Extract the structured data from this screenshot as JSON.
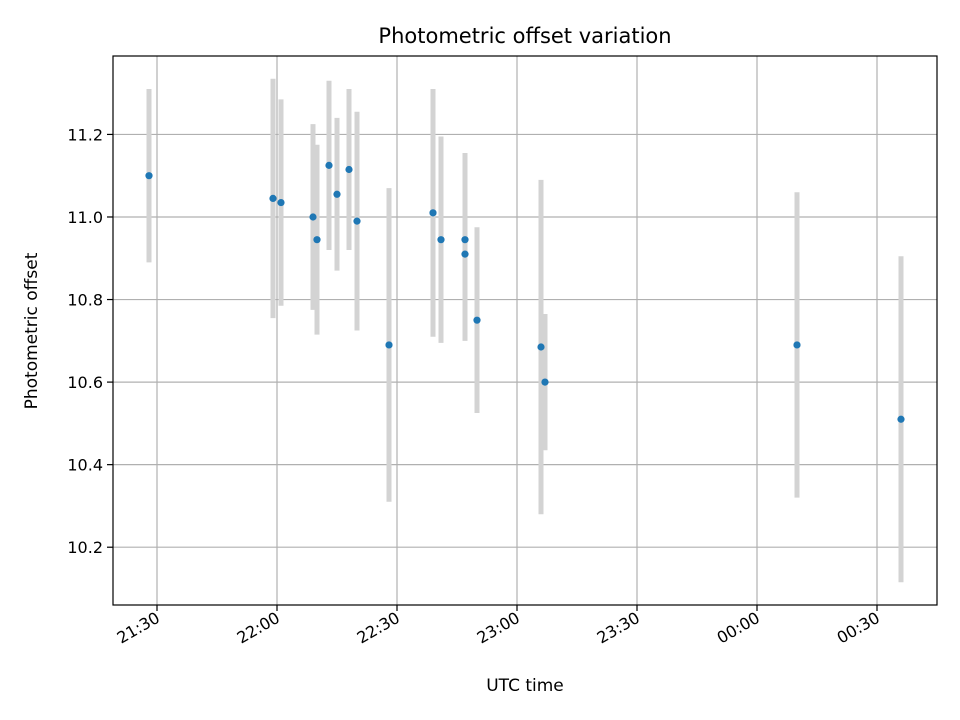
{
  "chart_data": {
    "type": "scatter",
    "title": "Photometric offset variation",
    "xlabel": "UTC time",
    "ylabel": "Photometric offset",
    "xlim": [
      "21:19",
      "00:45"
    ],
    "ylim": [
      10.06,
      11.39
    ],
    "grid": true,
    "x_ticks": [
      "21:30",
      "22:00",
      "22:30",
      "23:00",
      "23:30",
      "00:00",
      "00:30"
    ],
    "y_ticks": [
      "10.2",
      "10.4",
      "10.6",
      "10.8",
      "11.0",
      "11.2"
    ],
    "series": [
      {
        "marker_color": "#1f77b4",
        "errorbar_color": "#d3d3d3",
        "points": [
          {
            "time": "21:28",
            "y": 11.1,
            "yerr": 0.21
          },
          {
            "time": "21:59",
            "y": 11.045,
            "yerr": 0.29
          },
          {
            "time": "22:01",
            "y": 11.035,
            "yerr": 0.25
          },
          {
            "time": "22:09",
            "y": 11.0,
            "yerr": 0.225
          },
          {
            "time": "22:10",
            "y": 10.945,
            "yerr": 0.23
          },
          {
            "time": "22:13",
            "y": 11.125,
            "yerr": 0.205
          },
          {
            "time": "22:15",
            "y": 11.055,
            "yerr": 0.185
          },
          {
            "time": "22:18",
            "y": 11.115,
            "yerr": 0.195
          },
          {
            "time": "22:20",
            "y": 10.99,
            "yerr": 0.265
          },
          {
            "time": "22:28",
            "y": 10.69,
            "yerr": 0.38
          },
          {
            "time": "22:39",
            "y": 11.01,
            "yerr": 0.3
          },
          {
            "time": "22:41",
            "y": 10.945,
            "yerr": 0.25
          },
          {
            "time": "22:47",
            "y": 10.945,
            "yerr": 0.21
          },
          {
            "time": "22:47",
            "y": 10.91,
            "yerr": 0.21
          },
          {
            "time": "22:50",
            "y": 10.75,
            "yerr": 0.225
          },
          {
            "time": "23:06",
            "y": 10.685,
            "yerr": 0.405
          },
          {
            "time": "23:07",
            "y": 10.6,
            "yerr": 0.165
          },
          {
            "time": "00:10",
            "y": 10.69,
            "yerr": 0.37
          },
          {
            "time": "00:36",
            "y": 10.51,
            "yerr": 0.395
          }
        ]
      }
    ]
  }
}
